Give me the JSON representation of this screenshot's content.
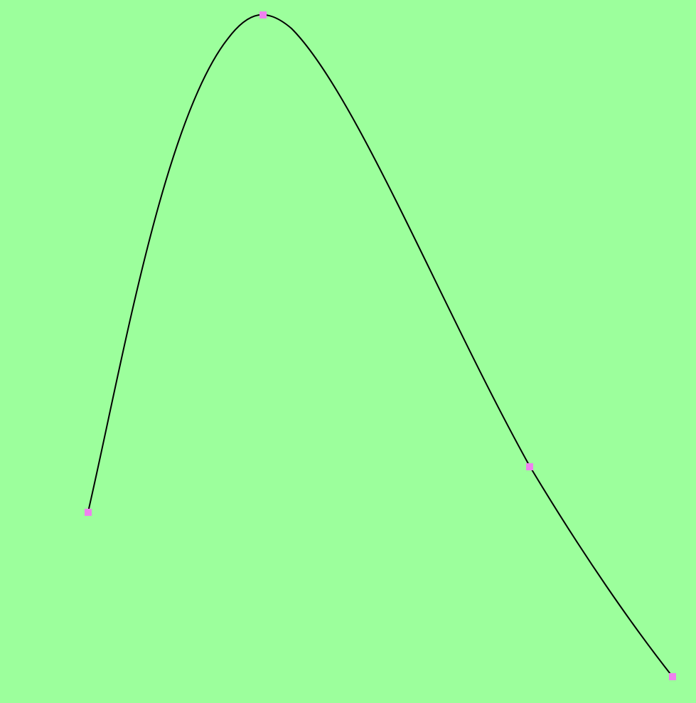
{
  "colors": {
    "background": "#9cff9c",
    "curve": "#000000",
    "handle": "#ee82ee"
  },
  "curve": {
    "type": "smooth-spline",
    "control_point_count": 4
  }
}
